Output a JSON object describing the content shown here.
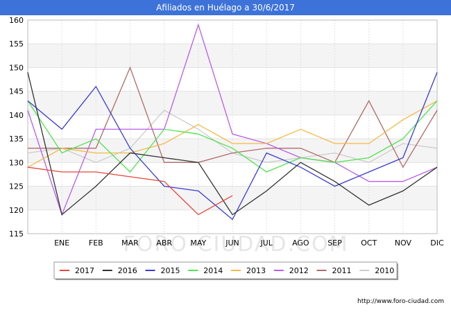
{
  "chart_data": {
    "type": "line",
    "title": "Afiliados en Huélago a 30/6/2017",
    "categories": [
      "",
      "ENE",
      "FEB",
      "MAR",
      "ABR",
      "MAY",
      "JUN",
      "JUL",
      "AGO",
      "SEP",
      "OCT",
      "NOV",
      "DIC"
    ],
    "ylim": [
      115,
      160
    ],
    "yticks": [
      115,
      120,
      125,
      130,
      135,
      140,
      145,
      150,
      155,
      160
    ],
    "grid": true,
    "legend_position": "bottom",
    "series": [
      {
        "name": "2017",
        "color": "#e8463c",
        "values": [
          129,
          128,
          128,
          127,
          126,
          119,
          123,
          null,
          null,
          null,
          null,
          null,
          null
        ]
      },
      {
        "name": "2016",
        "color": "#333333",
        "values": [
          149,
          119,
          125,
          132,
          131,
          130,
          119,
          124,
          130,
          126,
          121,
          124,
          129
        ]
      },
      {
        "name": "2015",
        "color": "#3a3ad6",
        "values": [
          143,
          137,
          146,
          133,
          125,
          124,
          118,
          132,
          129,
          125,
          128,
          131,
          149
        ]
      },
      {
        "name": "2014",
        "color": "#4ee44e",
        "values": [
          143,
          132,
          135,
          128,
          137,
          136,
          133,
          128,
          131,
          130,
          131,
          135,
          143
        ]
      },
      {
        "name": "2013",
        "color": "#f5b942",
        "values": [
          129,
          133,
          132,
          132,
          134,
          138,
          134,
          134,
          137,
          134,
          134,
          139,
          143
        ]
      },
      {
        "name": "2012",
        "color": "#b95de8",
        "values": [
          141,
          119,
          137,
          137,
          137,
          159,
          136,
          134,
          131,
          130,
          126,
          126,
          129
        ]
      },
      {
        "name": "2011",
        "color": "#b06a6a",
        "values": [
          133,
          133,
          133,
          150,
          130,
          130,
          132,
          133,
          133,
          130,
          143,
          129,
          141
        ]
      },
      {
        "name": "2010",
        "color": "#cccccc",
        "values": [
          132,
          133,
          130,
          133,
          141,
          137,
          132,
          130,
          131,
          132,
          130,
          134,
          133
        ]
      }
    ]
  },
  "watermark": "FORO-CIUDAD.COM",
  "footer": "http://www.foro-ciudad.com"
}
